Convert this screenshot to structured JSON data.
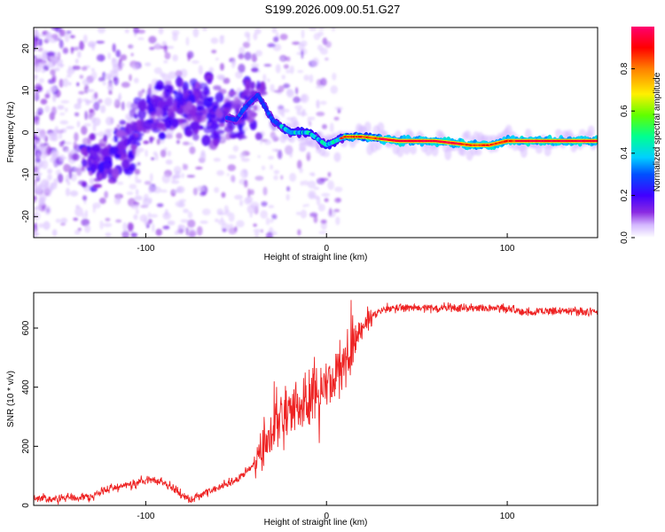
{
  "title": "S199.2026.009.00.51.G27",
  "chart_data": [
    {
      "type": "heatmap",
      "xlabel": "Height of straight line (km)",
      "ylabel": "Frequency (Hz)",
      "xlim": [
        -162,
        150
      ],
      "ylim": [
        -25,
        25
      ],
      "xticks": [
        -100,
        0,
        100
      ],
      "yticks": [
        -20,
        -10,
        0,
        10,
        20
      ],
      "grid": false,
      "colorbar": {
        "label": "Normalized spectral amplitude",
        "ticks": [
          0.0,
          0.2,
          0.4,
          0.6,
          0.8
        ],
        "colors": [
          "#ffffff",
          "#d4b8ff",
          "#8a2be2",
          "#4000ff",
          "#0050ff",
          "#00d0ff",
          "#00ff90",
          "#60ff00",
          "#fff000",
          "#ff8000",
          "#ff0000",
          "#ff0070"
        ]
      },
      "ridge": [
        {
          "x": -120,
          "y": -7
        },
        {
          "x": -110,
          "y": -3
        },
        {
          "x": -100,
          "y": 2
        },
        {
          "x": -90,
          "y": 5
        },
        {
          "x": -80,
          "y": 7
        },
        {
          "x": -70,
          "y": 6
        },
        {
          "x": -60,
          "y": 4
        },
        {
          "x": -50,
          "y": 3
        },
        {
          "x": -45,
          "y": 6
        },
        {
          "x": -38,
          "y": 9
        },
        {
          "x": -30,
          "y": 3
        },
        {
          "x": -20,
          "y": 0
        },
        {
          "x": -10,
          "y": 0
        },
        {
          "x": 0,
          "y": -3
        },
        {
          "x": 10,
          "y": -1
        },
        {
          "x": 20,
          "y": -1
        },
        {
          "x": 40,
          "y": -2
        },
        {
          "x": 60,
          "y": -2
        },
        {
          "x": 80,
          "y": -3
        },
        {
          "x": 90,
          "y": -3
        },
        {
          "x": 100,
          "y": -2
        },
        {
          "x": 120,
          "y": -2
        },
        {
          "x": 150,
          "y": -2
        }
      ]
    },
    {
      "type": "line",
      "xlabel": "Height of straight line (km)",
      "ylabel": "SNR (10 * v/v)",
      "xlim": [
        -162,
        150
      ],
      "ylim": [
        0,
        720
      ],
      "xticks": [
        -100,
        0,
        100
      ],
      "yticks": [
        0,
        200,
        400,
        600
      ],
      "grid": false,
      "color": "#ee2222",
      "series": [
        {
          "x": [
            -162,
            -150,
            -140,
            -130,
            -120,
            -110,
            -100,
            -90,
            -80,
            -75,
            -70,
            -60,
            -55,
            -50,
            -45,
            -40,
            -35,
            -30,
            -25,
            -20,
            -15,
            -10,
            -5,
            0,
            5,
            8,
            12,
            15,
            20,
            25,
            30,
            40,
            60,
            80,
            90,
            100,
            110,
            120,
            130,
            140,
            150
          ],
          "values": [
            25,
            22,
            25,
            30,
            55,
            65,
            85,
            80,
            35,
            20,
            35,
            60,
            75,
            85,
            110,
            140,
            200,
            250,
            300,
            320,
            330,
            340,
            380,
            400,
            420,
            450,
            500,
            550,
            600,
            640,
            660,
            670,
            670,
            670,
            670,
            665,
            655,
            655,
            660,
            655,
            660
          ]
        }
      ]
    }
  ]
}
